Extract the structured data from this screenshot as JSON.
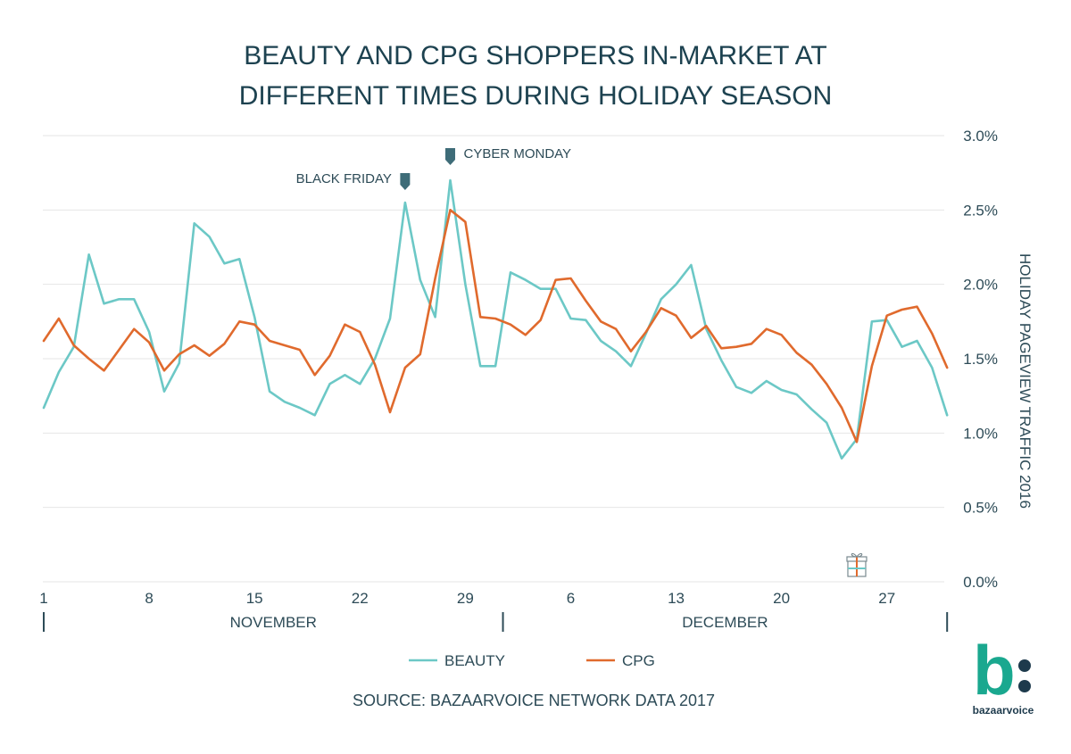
{
  "chart_data": {
    "type": "line",
    "title_lines": [
      "BEAUTY AND CPG SHOPPERS IN-MARKET AT",
      "DIFFERENT TIMES DURING HOLIDAY SEASON"
    ],
    "ylabel": "HOLIDAY PAGEVIEW TRAFFIC 2016",
    "ylim": [
      0,
      3.0
    ],
    "y_ticks": [
      "0.0%",
      "0.5%",
      "1.0%",
      "1.5%",
      "2.0%",
      "2.5%",
      "3.0%"
    ],
    "y_tick_values": [
      0,
      0.5,
      1.0,
      1.5,
      2.0,
      2.5,
      3.0
    ],
    "x_tick_labels": [
      "1",
      "8",
      "15",
      "22",
      "29",
      "6",
      "13",
      "20",
      "27"
    ],
    "x_tick_days": [
      1,
      8,
      15,
      22,
      29,
      36,
      43,
      50,
      57
    ],
    "months": [
      "NOVEMBER",
      "DECEMBER"
    ],
    "x_days": [
      1,
      2,
      3,
      4,
      5,
      6,
      7,
      8,
      9,
      10,
      11,
      12,
      13,
      14,
      15,
      16,
      17,
      18,
      19,
      20,
      21,
      22,
      23,
      24,
      25,
      26,
      27,
      28,
      29,
      30,
      31,
      32,
      33,
      34,
      35,
      36,
      37,
      38,
      39,
      40,
      41,
      42,
      43,
      44,
      45,
      46,
      47,
      48,
      49,
      50,
      51,
      52,
      53,
      54,
      55,
      56,
      57,
      58,
      59,
      60,
      61
    ],
    "series": [
      {
        "name": "BEAUTY",
        "color": "#6cc8c6",
        "values": [
          1.17,
          1.41,
          1.58,
          2.2,
          1.87,
          1.9,
          1.9,
          1.68,
          1.28,
          1.47,
          2.41,
          2.32,
          2.14,
          2.17,
          1.78,
          1.28,
          1.21,
          1.17,
          1.12,
          1.33,
          1.39,
          1.33,
          1.5,
          1.77,
          2.55,
          2.03,
          1.78,
          2.7,
          2.0,
          1.45,
          1.45,
          2.08,
          2.03,
          1.97,
          1.97,
          1.77,
          1.76,
          1.62,
          1.55,
          1.45,
          1.67,
          1.9,
          2.0,
          2.13,
          1.7,
          1.49,
          1.31,
          1.27,
          1.35,
          1.29,
          1.26,
          1.16,
          1.07,
          0.83,
          0.96,
          1.75,
          1.76,
          1.58,
          1.62,
          1.44,
          1.12
        ]
      },
      {
        "name": "CPG",
        "color": "#e06a2d",
        "values": [
          1.62,
          1.77,
          1.59,
          1.5,
          1.42,
          1.56,
          1.7,
          1.61,
          1.42,
          1.53,
          1.59,
          1.52,
          1.6,
          1.75,
          1.73,
          1.62,
          1.59,
          1.56,
          1.39,
          1.52,
          1.73,
          1.68,
          1.46,
          1.14,
          1.44,
          1.53,
          2.04,
          2.5,
          2.42,
          1.78,
          1.77,
          1.73,
          1.66,
          1.76,
          2.03,
          2.04,
          1.89,
          1.75,
          1.7,
          1.55,
          1.68,
          1.84,
          1.79,
          1.64,
          1.72,
          1.57,
          1.58,
          1.6,
          1.7,
          1.66,
          1.54,
          1.46,
          1.33,
          1.17,
          0.94,
          1.45,
          1.79,
          1.83,
          1.85,
          1.67,
          1.44
        ]
      }
    ],
    "annotations": [
      {
        "label": "BLACK FRIDAY",
        "day": 25
      },
      {
        "label": "CYBER MONDAY",
        "day": 28
      }
    ],
    "gift_marker_day": 55,
    "source": "SOURCE: BAZAARVOICE NETWORK DATA 2017",
    "grid": true,
    "legend_position": "bottom-center"
  },
  "brand": {
    "logo_letter": "b",
    "logo_text": "bazaarvoice",
    "teal": "#1aa88f",
    "navy": "#1d3a4c"
  },
  "colors": {
    "title": "#1d4250",
    "axis_text": "#2d4b57",
    "grid": "#e6e6e6",
    "marker": "#3e6c78"
  }
}
